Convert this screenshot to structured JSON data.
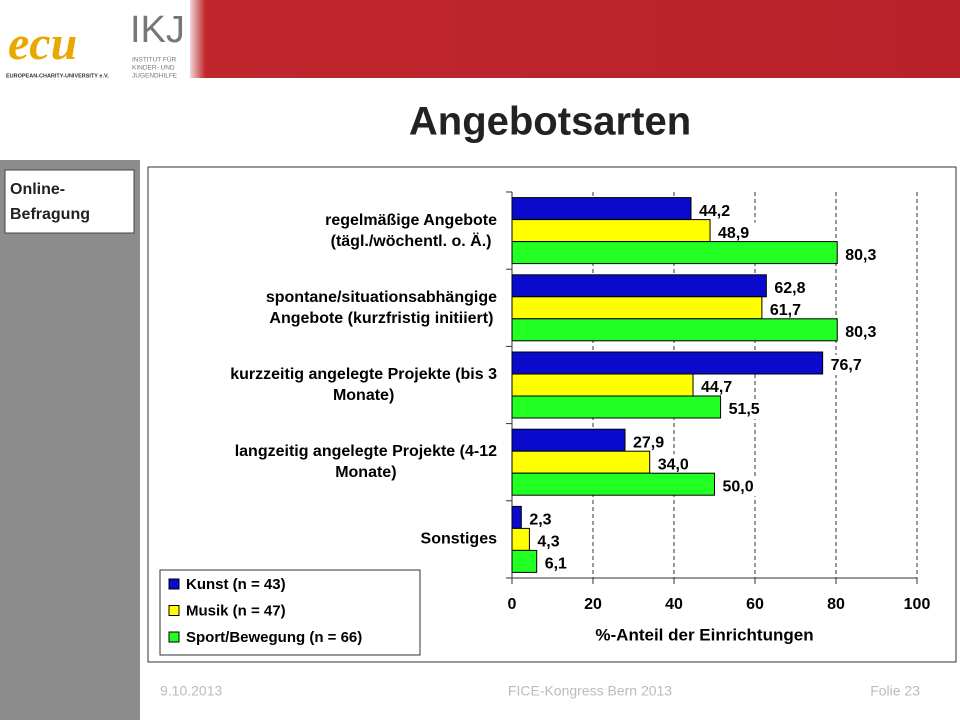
{
  "header": {
    "logo_ecu": "ecu",
    "logo_ecu_sub": "EUROPEAN-CHARITY-UNIVERSITY e.V.",
    "logo_ikj": "IKJ",
    "logo_ikj_sub": [
      "INSTITUT FÜR",
      "KINDER- UND",
      "JUGENDHILFE"
    ]
  },
  "title": "Angebotsarten",
  "side_label": [
    "Online-",
    "Befragung"
  ],
  "chart_data": {
    "type": "barh",
    "categories": [
      "regelmäßige Angebote\n(tägl./wöchentl. o. Ä.)",
      "spontane/situationsabhängige\nAngebote (kurzfristig initiiert)",
      "kurzzeitig angelegte Projekte (bis 3\nMonate)",
      "langzeitig angelegte Projekte (4-12\nMonate)",
      "Sonstiges"
    ],
    "series": [
      {
        "name": "Kunst (n = 43)",
        "color": "#0a0acc",
        "values": [
          44.2,
          62.8,
          76.7,
          27.9,
          2.3
        ],
        "value_labels": [
          "44,2",
          "62,8",
          "76,7",
          "27,9",
          "2,3"
        ]
      },
      {
        "name": "Musik (n = 47)",
        "color": "#ffff00",
        "values": [
          48.9,
          61.7,
          44.7,
          34.0,
          4.3
        ],
        "value_labels": [
          "48,9",
          "61,7",
          "44,7",
          "34,0",
          "4,3"
        ]
      },
      {
        "name": "Sport/Bewegung (n = 66)",
        "color": "#22ff22",
        "values": [
          80.3,
          80.3,
          51.5,
          50.0,
          6.1
        ],
        "value_labels": [
          "80,3",
          "80,3",
          "51,5",
          "50,0",
          "6,1"
        ]
      }
    ],
    "xlabel": "%-Anteil der Einrichtungen",
    "xlim": [
      0,
      100
    ],
    "xticks": [
      0,
      20,
      40,
      60,
      80,
      100
    ],
    "grid": true,
    "legend": "lower left"
  },
  "footer": {
    "date": "9.10.2013",
    "event": "FICE-Kongress Bern 2013",
    "slide": "Folie 23"
  }
}
